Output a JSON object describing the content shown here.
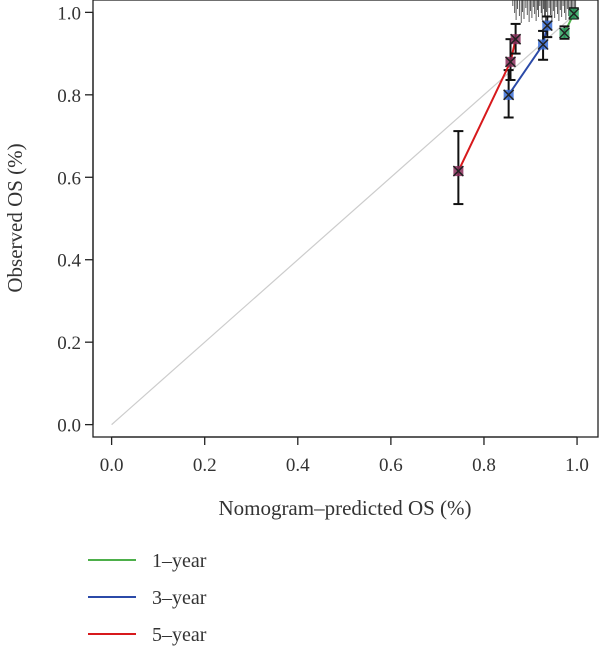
{
  "chart_data": {
    "type": "line",
    "xlabel": "Nomogram–predicted OS (%)",
    "ylabel": "Observed OS (%)",
    "xlim": [
      -0.04,
      1.045
    ],
    "ylim": [
      -0.03,
      1.03
    ],
    "x_ticks": [
      0.0,
      0.2,
      0.4,
      0.6,
      0.8,
      1.0
    ],
    "x_tick_labels": [
      "0.0",
      "0.2",
      "0.4",
      "0.6",
      "0.8",
      "1.0"
    ],
    "y_ticks": [
      0.0,
      0.2,
      0.4,
      0.6,
      0.8,
      1.0
    ],
    "y_tick_labels": [
      "0.0",
      "0.2",
      "0.4",
      "0.6",
      "0.8",
      "1.0"
    ],
    "reference_line": {
      "from": [
        0,
        0
      ],
      "to": [
        1,
        1
      ],
      "color": "#cccccc"
    },
    "series": [
      {
        "name": "1–year",
        "color": "#4daf4a",
        "marker_color": "#2ca25f",
        "points": [
          {
            "x": 0.973,
            "y": 0.95,
            "lo": 0.936,
            "hi": 0.966
          },
          {
            "x": 0.993,
            "y": 0.997,
            "lo": 0.985,
            "hi": 1.01
          }
        ]
      },
      {
        "name": "3–year",
        "color": "#2b4aa8",
        "marker_color": "#3a6fd8",
        "points": [
          {
            "x": 0.853,
            "y": 0.8,
            "lo": 0.745,
            "hi": 0.86
          },
          {
            "x": 0.927,
            "y": 0.922,
            "lo": 0.885,
            "hi": 0.955
          },
          {
            "x": 0.936,
            "y": 0.968,
            "lo": 0.94,
            "hi": 0.99
          }
        ]
      },
      {
        "name": "5–year",
        "color": "#d7191c",
        "marker_color": "#8a2d5a",
        "points": [
          {
            "x": 0.745,
            "y": 0.615,
            "lo": 0.535,
            "hi": 0.712
          },
          {
            "x": 0.857,
            "y": 0.88,
            "lo": 0.836,
            "hi": 0.935
          },
          {
            "x": 0.868,
            "y": 0.935,
            "lo": 0.9,
            "hi": 0.972
          }
        ]
      }
    ],
    "rug_x": [
      0.862,
      0.866,
      0.869,
      0.872,
      0.876,
      0.88,
      0.883,
      0.886,
      0.89,
      0.893,
      0.897,
      0.9,
      0.903,
      0.906,
      0.909,
      0.912,
      0.915,
      0.917,
      0.92,
      0.923,
      0.925,
      0.928,
      0.93,
      0.932,
      0.934,
      0.937,
      0.94,
      0.943,
      0.946,
      0.949,
      0.952,
      0.955,
      0.958,
      0.961,
      0.964,
      0.967,
      0.97,
      0.973,
      0.976,
      0.979,
      0.982,
      0.985,
      0.988,
      0.991,
      0.994,
      0.997
    ],
    "legend_placement": "bottom-left",
    "grid": false
  }
}
